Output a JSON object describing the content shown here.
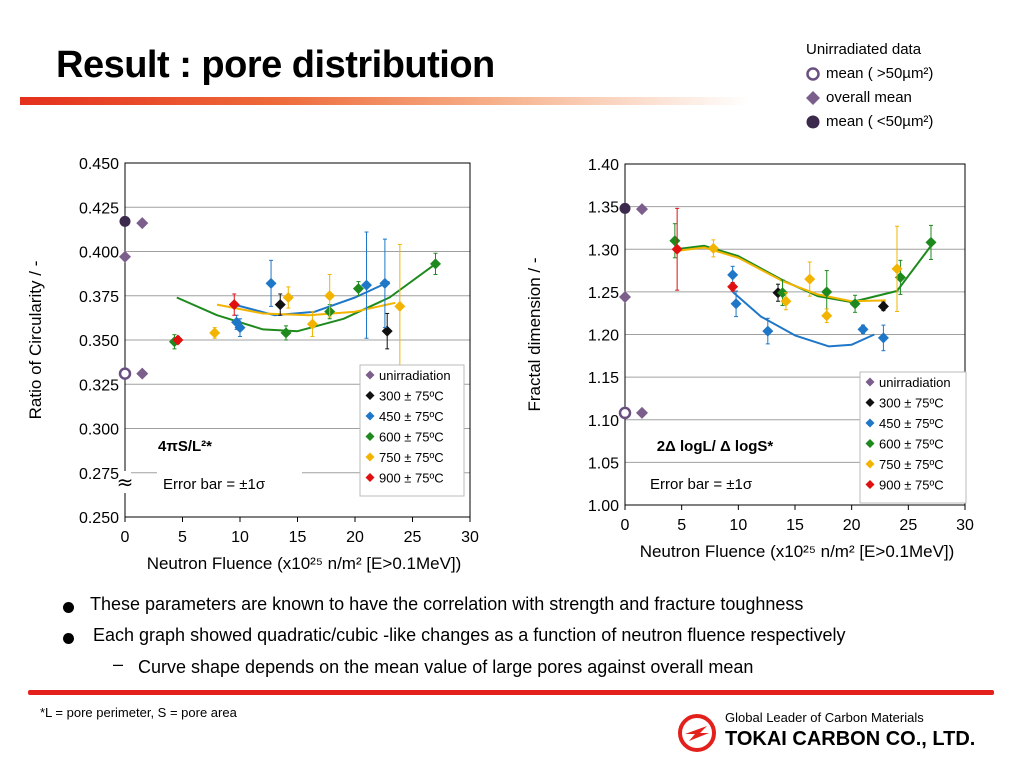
{
  "title": "Result : pore distribution",
  "legend_top": {
    "header": "Unirradiated data",
    "items": [
      {
        "marker": "open-circle",
        "label": "mean ( >50µm²)"
      },
      {
        "marker": "diamond",
        "label": "overall mean"
      },
      {
        "marker": "filled-circle",
        "label": "mean ( <50µm²)"
      }
    ]
  },
  "colors": {
    "unirradiation": "#7b5e8c",
    "300": "#111111",
    "450": "#1f77c8",
    "600": "#1e8a1e",
    "750": "#f2b400",
    "900": "#e01010",
    "grid": "#a0a0a0",
    "accent_red": "#e4201c"
  },
  "chart_data": [
    {
      "type": "scatter",
      "ylabel": "Ratio of Circularity / -",
      "xlabel": "Neutron Fluence (x10²⁵ n/m² [E>0.1MeV])",
      "xlim": [
        0,
        30
      ],
      "ylim": [
        0.25,
        0.45
      ],
      "x_ticks": [
        "0",
        "5",
        "10",
        "15",
        "20",
        "25",
        "30"
      ],
      "y_ticks": [
        "0.250",
        "0.275",
        "0.300",
        "0.325",
        "0.350",
        "0.375",
        "0.400",
        "0.425",
        "0.450"
      ],
      "formula": "4πS/L²*",
      "error_note": "Error bar = ±1σ",
      "break_mark": "≈",
      "legend_position": "bottom-right",
      "legend": [
        "unirradiation",
        "300 ± 75ºC",
        "450 ± 75ºC",
        "600 ± 75ºC",
        "750 ± 75ºC",
        "900 ± 75ºC"
      ],
      "unirr_markers": [
        {
          "marker": "filled-circle",
          "x": 0,
          "y": 0.417
        },
        {
          "marker": "diamond",
          "x": 0,
          "y": 0.397
        },
        {
          "marker": "open-circle",
          "x": 0,
          "y": 0.331
        },
        {
          "marker": "diamond",
          "x": 1.5,
          "y": 0.416
        },
        {
          "marker": "diamond",
          "x": 1.5,
          "y": 0.331
        }
      ],
      "series": [
        {
          "name": "300 ± 75ºC",
          "color": "#111111",
          "points": [
            {
              "x": 13.5,
              "y": 0.37,
              "err": 0.006
            },
            {
              "x": 22.8,
              "y": 0.355,
              "err": 0.01
            }
          ]
        },
        {
          "name": "450 ± 75ºC",
          "color": "#1f77c8",
          "points": [
            {
              "x": 9.7,
              "y": 0.36,
              "err": 0.004
            },
            {
              "x": 10.0,
              "y": 0.357,
              "err": 0.005
            },
            {
              "x": 12.7,
              "y": 0.382,
              "err": 0.013
            },
            {
              "x": 21.0,
              "y": 0.381,
              "err": 0.03
            },
            {
              "x": 22.6,
              "y": 0.382,
              "err": 0.025
            }
          ]
        },
        {
          "name": "600 ± 75ºC",
          "color": "#1e8a1e",
          "points": [
            {
              "x": 4.3,
              "y": 0.349,
              "err": 0.004
            },
            {
              "x": 14.0,
              "y": 0.354,
              "err": 0.004
            },
            {
              "x": 17.8,
              "y": 0.366,
              "err": 0.004
            },
            {
              "x": 20.3,
              "y": 0.379,
              "err": 0.004
            },
            {
              "x": 27.0,
              "y": 0.393,
              "err": 0.006
            }
          ]
        },
        {
          "name": "750 ± 75ºC",
          "color": "#f2b400",
          "points": [
            {
              "x": 7.8,
              "y": 0.354,
              "err": 0.003
            },
            {
              "x": 14.2,
              "y": 0.374,
              "err": 0.006
            },
            {
              "x": 16.3,
              "y": 0.359,
              "err": 0.007
            },
            {
              "x": 17.8,
              "y": 0.375,
              "err": 0.012
            },
            {
              "x": 23.9,
              "y": 0.369,
              "err": 0.035
            }
          ]
        },
        {
          "name": "900 ± 75ºC",
          "color": "#e01010",
          "points": [
            {
              "x": 4.6,
              "y": 0.35,
              "err": 0.002
            },
            {
              "x": 9.5,
              "y": 0.37,
              "err": 0.006
            }
          ]
        }
      ],
      "curves": [
        {
          "color": "#1e8a1e",
          "points": [
            [
              4.5,
              0.374
            ],
            [
              8,
              0.364
            ],
            [
              12,
              0.356
            ],
            [
              15,
              0.355
            ],
            [
              19,
              0.362
            ],
            [
              23,
              0.374
            ],
            [
              27,
              0.393
            ]
          ]
        },
        {
          "color": "#1f77c8",
          "points": [
            [
              9.5,
              0.37
            ],
            [
              13,
              0.364
            ],
            [
              16.5,
              0.366
            ],
            [
              20,
              0.374
            ],
            [
              23,
              0.383
            ]
          ]
        },
        {
          "color": "#f2b400",
          "points": [
            [
              8,
              0.37
            ],
            [
              12,
              0.365
            ],
            [
              16,
              0.364
            ],
            [
              20,
              0.366
            ],
            [
              23.5,
              0.371
            ]
          ]
        }
      ]
    },
    {
      "type": "scatter",
      "ylabel": "Fractal dimension / -",
      "xlabel": "Neutron Fluence (x10²⁵ n/m² [E>0.1MeV])",
      "xlim": [
        0,
        30
      ],
      "ylim": [
        1.0,
        1.4
      ],
      "x_ticks": [
        "0",
        "5",
        "10",
        "15",
        "20",
        "25",
        "30"
      ],
      "y_ticks": [
        "1.00",
        "1.05",
        "1.10",
        "1.15",
        "1.20",
        "1.25",
        "1.30",
        "1.35",
        "1.40"
      ],
      "formula": "2Δ logL/ Δ logS*",
      "error_note": "Error bar = ±1σ",
      "legend_position": "bottom-right",
      "legend": [
        "unirradiation",
        "300 ± 75ºC",
        "450 ± 75ºC",
        "600 ± 75ºC",
        "750 ± 75ºC",
        "900 ± 75ºC"
      ],
      "unirr_markers": [
        {
          "marker": "filled-circle",
          "x": 0,
          "y": 1.348
        },
        {
          "marker": "diamond",
          "x": 0,
          "y": 1.244
        },
        {
          "marker": "open-circle",
          "x": 0,
          "y": 1.108
        },
        {
          "marker": "diamond",
          "x": 1.5,
          "y": 1.347
        },
        {
          "marker": "diamond",
          "x": 1.5,
          "y": 1.108
        }
      ],
      "series": [
        {
          "name": "300 ± 75ºC",
          "color": "#111111",
          "points": [
            {
              "x": 13.5,
              "y": 1.249,
              "err": 0.01
            },
            {
              "x": 22.8,
              "y": 1.233,
              "err": 0.005
            }
          ]
        },
        {
          "name": "450 ± 75ºC",
          "color": "#1f77c8",
          "points": [
            {
              "x": 9.5,
              "y": 1.27,
              "err": 0.01
            },
            {
              "x": 9.8,
              "y": 1.236,
              "err": 0.015
            },
            {
              "x": 12.6,
              "y": 1.204,
              "err": 0.015
            },
            {
              "x": 21.0,
              "y": 1.206,
              "err": 0.005
            },
            {
              "x": 22.8,
              "y": 1.196,
              "err": 0.015
            }
          ]
        },
        {
          "name": "600 ± 75ºC",
          "color": "#1e8a1e",
          "points": [
            {
              "x": 4.4,
              "y": 1.31,
              "err": 0.02
            },
            {
              "x": 13.9,
              "y": 1.249,
              "err": 0.015
            },
            {
              "x": 17.8,
              "y": 1.25,
              "err": 0.025
            },
            {
              "x": 20.3,
              "y": 1.236,
              "err": 0.01
            },
            {
              "x": 24.3,
              "y": 1.267,
              "err": 0.02
            },
            {
              "x": 27.0,
              "y": 1.308,
              "err": 0.02
            }
          ]
        },
        {
          "name": "750 ± 75ºC",
          "color": "#f2b400",
          "points": [
            {
              "x": 7.8,
              "y": 1.301,
              "err": 0.01
            },
            {
              "x": 14.2,
              "y": 1.239,
              "err": 0.01
            },
            {
              "x": 16.3,
              "y": 1.265,
              "err": 0.02
            },
            {
              "x": 17.8,
              "y": 1.222,
              "err": 0.008
            },
            {
              "x": 24.0,
              "y": 1.277,
              "err": 0.05
            }
          ]
        },
        {
          "name": "900 ± 75ºC",
          "color": "#e01010",
          "points": [
            {
              "x": 4.6,
              "y": 1.3,
              "err": 0.048
            },
            {
              "x": 9.5,
              "y": 1.256,
              "err": 0.005
            }
          ]
        }
      ],
      "curves": [
        {
          "color": "#1f77c8",
          "points": [
            [
              9.5,
              1.25
            ],
            [
              12,
              1.221
            ],
            [
              15,
              1.199
            ],
            [
              18,
              1.186
            ],
            [
              20,
              1.188
            ],
            [
              22,
              1.2
            ]
          ]
        },
        {
          "color": "#1e8a1e",
          "points": [
            [
              4.5,
              1.3
            ],
            [
              7,
              1.304
            ],
            [
              10,
              1.292
            ],
            [
              14,
              1.263
            ],
            [
              17,
              1.245
            ],
            [
              20,
              1.238
            ],
            [
              24,
              1.251
            ],
            [
              27,
              1.304
            ]
          ]
        },
        {
          "color": "#f2b400",
          "points": [
            [
              4.5,
              1.298
            ],
            [
              7,
              1.302
            ],
            [
              10,
              1.29
            ],
            [
              14,
              1.262
            ],
            [
              17,
              1.247
            ],
            [
              20,
              1.239
            ],
            [
              23,
              1.24
            ]
          ]
        }
      ]
    }
  ],
  "bullets": [
    {
      "level": 1,
      "text": "These parameters are known to have the correlation with strength and fracture toughness"
    },
    {
      "level": 1,
      "text": "Each graph showed quadratic/cubic -like changes as a function of neutron fluence respectively"
    },
    {
      "level": 2,
      "text": "Curve shape depends on the mean value of large pores against overall mean"
    }
  ],
  "footnote": "*L = pore perimeter, S = pore area",
  "company": {
    "tagline": "Global Leader of Carbon Materials",
    "name": "TOKAI CARBON CO., LTD."
  }
}
